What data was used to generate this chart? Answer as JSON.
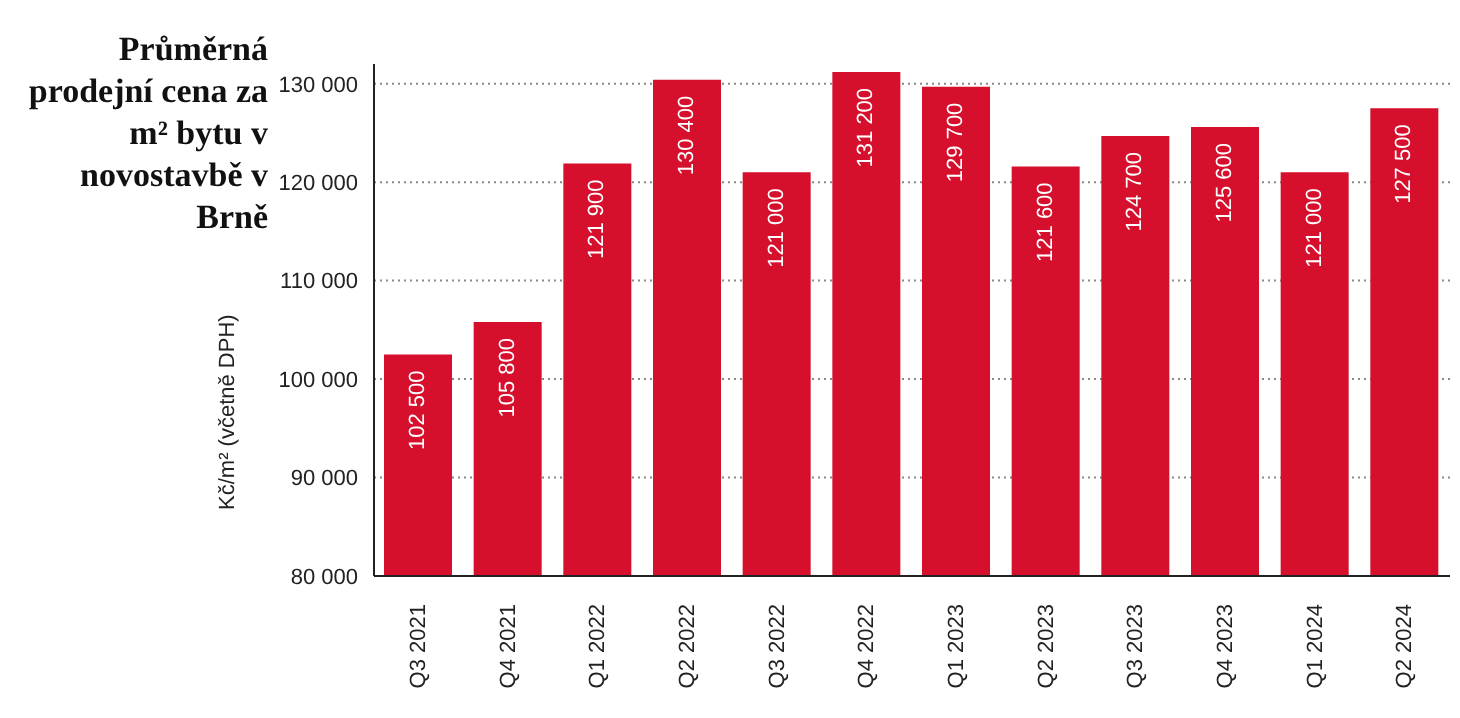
{
  "chart_data": {
    "type": "bar",
    "title": "Průměrná prodejní cena za m² bytu v novostavbě v Brně",
    "ylabel": "Kč/m² (včetně DPH)",
    "categories": [
      "Q3 2021",
      "Q4 2021",
      "Q1 2022",
      "Q2 2022",
      "Q3 2022",
      "Q4 2022",
      "Q1 2023",
      "Q2 2023",
      "Q3 2023",
      "Q4 2023",
      "Q1 2024",
      "Q2 2024"
    ],
    "values": [
      102500,
      105800,
      121900,
      130400,
      121000,
      131200,
      129700,
      121600,
      124700,
      125600,
      121000,
      127500
    ],
    "color": "#d50f2c",
    "ylim": [
      80000,
      132000
    ],
    "yticks": [
      80000,
      90000,
      100000,
      110000,
      120000,
      130000
    ],
    "grid": "y",
    "data_labels": true
  }
}
